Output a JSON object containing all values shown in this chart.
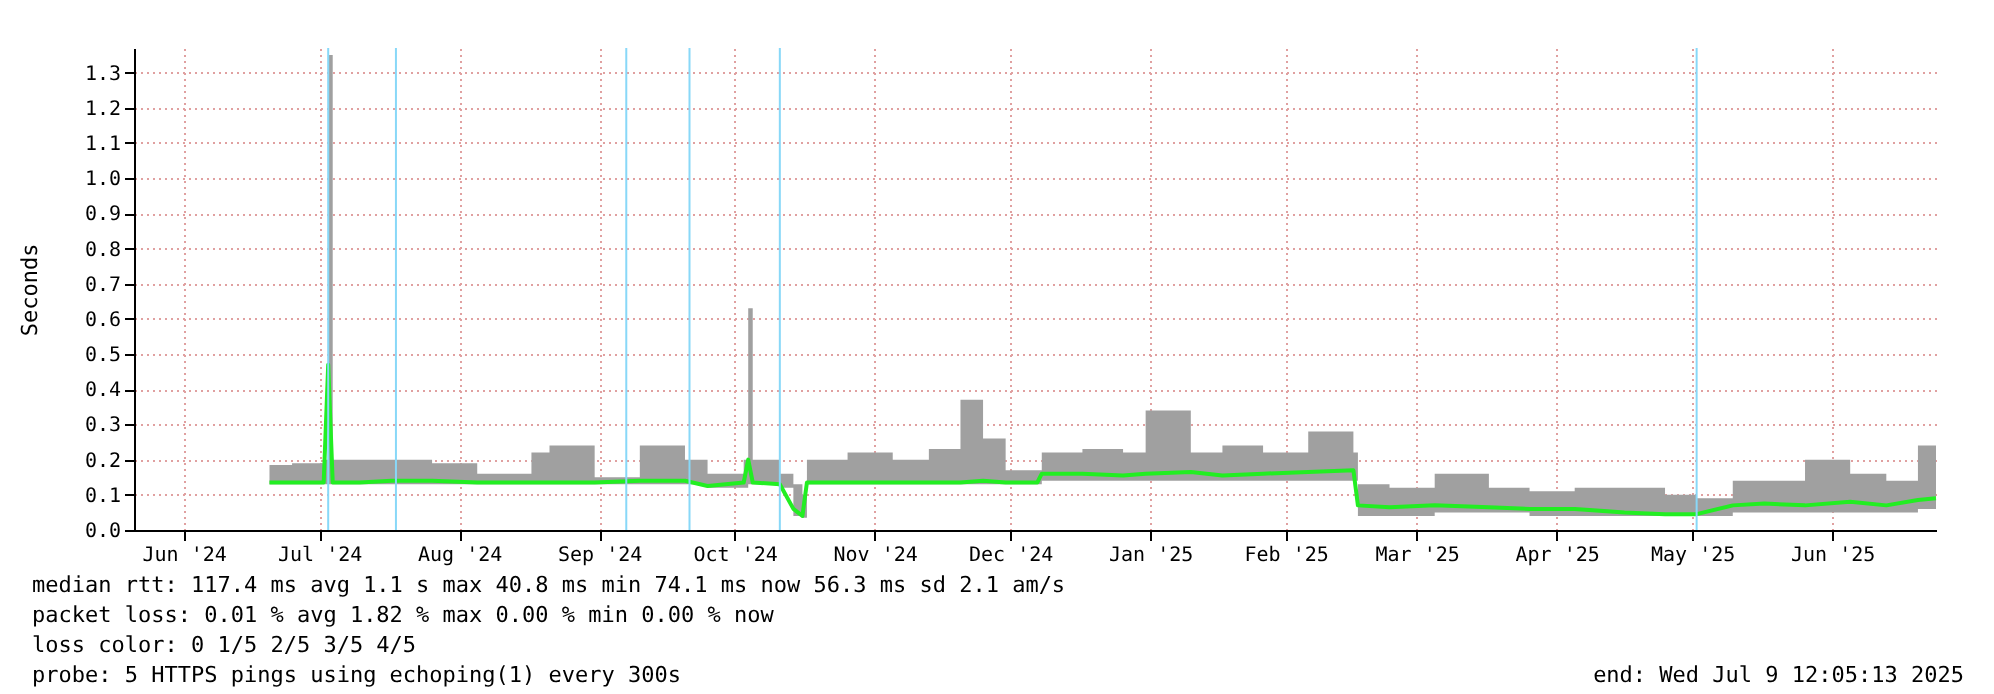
{
  "chart_data": {
    "type": "line",
    "ylabel": "Seconds",
    "x": [
      "2024-07-05",
      "2024-07-10",
      "2024-07-17",
      "2024-07-18",
      "2024-07-19",
      "2024-07-25",
      "2024-08-01",
      "2024-08-10",
      "2024-08-20",
      "2024-09-01",
      "2024-09-05",
      "2024-09-15",
      "2024-09-25",
      "2024-10-05",
      "2024-10-10",
      "2024-10-18",
      "2024-10-19",
      "2024-10-20",
      "2024-10-26",
      "2024-10-29",
      "2024-10-31",
      "2024-11-01",
      "2024-11-10",
      "2024-11-20",
      "2024-11-28",
      "2024-12-05",
      "2024-12-10",
      "2024-12-15",
      "2024-12-22",
      "2024-12-23",
      "2025-01-01",
      "2025-01-10",
      "2025-01-15",
      "2025-01-25",
      "2025-02-01",
      "2025-02-10",
      "2025-02-20",
      "2025-03-02",
      "2025-03-03",
      "2025-03-10",
      "2025-03-20",
      "2025-04-01",
      "2025-04-10",
      "2025-04-20",
      "2025-05-01",
      "2025-05-10",
      "2025-05-17",
      "2025-05-25",
      "2025-06-01",
      "2025-06-10",
      "2025-06-20",
      "2025-06-28",
      "2025-07-05",
      "2025-07-09"
    ],
    "series": [
      {
        "color": "#22ee22",
        "values": [
          0.135,
          0.135,
          0.135,
          0.47,
          0.135,
          0.135,
          0.14,
          0.14,
          0.135,
          0.135,
          0.135,
          0.135,
          0.14,
          0.14,
          0.125,
          0.135,
          0.2,
          0.135,
          0.13,
          0.06,
          0.04,
          0.135,
          0.135,
          0.135,
          0.135,
          0.135,
          0.14,
          0.135,
          0.135,
          0.16,
          0.16,
          0.155,
          0.16,
          0.165,
          0.155,
          0.16,
          0.165,
          0.17,
          0.07,
          0.065,
          0.07,
          0.065,
          0.06,
          0.06,
          0.05,
          0.045,
          0.045,
          0.07,
          0.075,
          0.07,
          0.08,
          0.07,
          0.085,
          0.09
        ],
        "lower": [
          0.13,
          0.13,
          0.13,
          0.13,
          0.13,
          0.13,
          0.13,
          0.13,
          0.13,
          0.13,
          0.13,
          0.13,
          0.13,
          0.13,
          0.12,
          0.12,
          0.13,
          0.13,
          0.12,
          0.04,
          0.035,
          0.13,
          0.13,
          0.13,
          0.13,
          0.13,
          0.13,
          0.13,
          0.13,
          0.14,
          0.14,
          0.14,
          0.14,
          0.14,
          0.14,
          0.14,
          0.14,
          0.14,
          0.04,
          0.04,
          0.05,
          0.05,
          0.04,
          0.04,
          0.04,
          0.04,
          0.04,
          0.05,
          0.05,
          0.05,
          0.05,
          0.05,
          0.06,
          0.06
        ],
        "upper": [
          0.185,
          0.19,
          0.2,
          1.35,
          0.2,
          0.2,
          0.2,
          0.19,
          0.16,
          0.22,
          0.24,
          0.15,
          0.24,
          0.2,
          0.16,
          0.2,
          0.63,
          0.2,
          0.16,
          0.13,
          0.1,
          0.2,
          0.22,
          0.2,
          0.23,
          0.37,
          0.26,
          0.17,
          0.17,
          0.22,
          0.23,
          0.22,
          0.34,
          0.22,
          0.24,
          0.22,
          0.28,
          0.22,
          0.13,
          0.12,
          0.16,
          0.12,
          0.11,
          0.12,
          0.12,
          0.1,
          0.09,
          0.14,
          0.14,
          0.2,
          0.16,
          0.14,
          0.24,
          0.17
        ]
      }
    ],
    "xlim": [
      "2024-06-05",
      "2025-07-09"
    ],
    "xticks": [
      {
        "value": "2024-06-16",
        "label": "Jun '24"
      },
      {
        "value": "2024-07-16",
        "label": "Jul '24"
      },
      {
        "value": "2024-08-16",
        "label": "Aug '24"
      },
      {
        "value": "2024-09-16",
        "label": "Sep '24"
      },
      {
        "value": "2024-10-16",
        "label": "Oct '24"
      },
      {
        "value": "2024-11-16",
        "label": "Nov '24"
      },
      {
        "value": "2024-12-16",
        "label": "Dec '24"
      },
      {
        "value": "2025-01-16",
        "label": "Jan '25"
      },
      {
        "value": "2025-02-15",
        "label": "Feb '25"
      },
      {
        "value": "2025-03-16",
        "label": "Mar '25"
      },
      {
        "value": "2025-04-16",
        "label": "Apr '25"
      },
      {
        "value": "2025-05-16",
        "label": "May '25"
      },
      {
        "value": "2025-06-16",
        "label": "Jun '25"
      }
    ],
    "ylim": [
      0,
      1.37
    ],
    "yticks": [
      {
        "value": 0,
        "label": "0.0"
      },
      0.1,
      0.2,
      0.3,
      0.4,
      0.5,
      0.6,
      0.7,
      0.8,
      0.9,
      {
        "value": 1,
        "label": "1.0"
      },
      1.1,
      1.2,
      1.3
    ],
    "grid": true,
    "ref_lines": [
      {
        "axis": "x",
        "value": "2024-07-18",
        "color": "#88d8f8"
      },
      {
        "axis": "x",
        "value": "2024-08-02",
        "color": "#88d8f8"
      },
      {
        "axis": "x",
        "value": "2024-09-22",
        "color": "#88d8f8"
      },
      {
        "axis": "x",
        "value": "2024-10-06",
        "color": "#88d8f8"
      },
      {
        "axis": "x",
        "value": "2024-10-26",
        "color": "#88d8f8"
      },
      {
        "axis": "x",
        "value": "2025-05-17",
        "color": "#88d8f8"
      }
    ],
    "annotations": [
      "median rtt:  117.4 ms avg  1.1  s max  40.8 ms min  74.1 ms now  56.3 ms sd  2.1   am/s",
      "packet loss: 0.01 % avg  1.82 % max  0.00 % min  0.00 % now",
      "loss color:  0  1/5  2/5  3/5  4/5",
      "probe:       5 HTTPS pings using echoping(1) every 300s",
      "end: Wed Jul  9 12:05:13 2025"
    ]
  }
}
